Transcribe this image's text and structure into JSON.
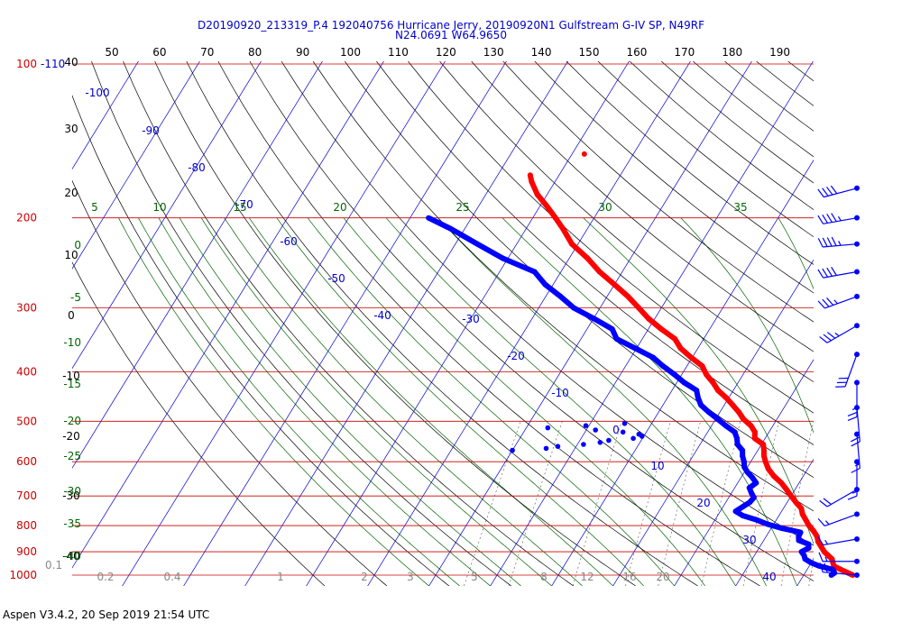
{
  "header": {
    "title_line1": "D20190920_213319_P.4 192040756 Hurricane Jerry, 20190920N1 Gulfstream G-IV SP, N49RF",
    "title_line2": "N24.0691 W64.9650"
  },
  "footer": {
    "text": "Aspen V3.4.2, 20 Sep 2019  21:54 UTC"
  },
  "colors": {
    "isobar": "#cc0000",
    "isotherm": "#0000cc",
    "dry_adiabat": "#000000",
    "moist_adiabat": "#006600",
    "mixing_ratio": "#555555",
    "temperature": "#ff0000",
    "dewpoint": "#0000ff",
    "wind": "#0000ff"
  },
  "chart_data": {
    "type": "line",
    "chart_kind": "skew-T log-P",
    "xlabel": "",
    "ylabel": "",
    "pressure_axis": {
      "levels": [
        1000,
        900,
        800,
        700,
        600,
        500,
        400,
        300,
        200,
        100
      ],
      "labels": [
        "1000",
        "900",
        "800",
        "700",
        "600",
        "500",
        "400",
        "300",
        "200",
        "100"
      ],
      "scale": "log",
      "top_secondary_label": "-110",
      "bottom_secondary_label": "0.1"
    },
    "top_scale": {
      "values": [
        50,
        60,
        70,
        80,
        90,
        100,
        110,
        120,
        130,
        140,
        150,
        160,
        170,
        180,
        190
      ],
      "labels": [
        "50",
        "60",
        "70",
        "80",
        "90",
        "100",
        "110",
        "120",
        "130",
        "140",
        "150",
        "160",
        "170",
        "180",
        "190"
      ]
    },
    "isotherm_labels": [
      "-100",
      "-90",
      "-80",
      "-70",
      "-60",
      "-50",
      "-40",
      "-30",
      "-20",
      "-10",
      "0",
      "10",
      "20",
      "30",
      "40"
    ],
    "dry_adiabat_labels": [
      "40",
      "30",
      "20",
      "10",
      "0",
      "-10",
      "-20",
      "-30",
      "-40"
    ],
    "moist_adiabat_labels": [
      "5",
      "10",
      "15",
      "20",
      "25",
      "30",
      "35"
    ],
    "moist_adiabat_left_labels": [
      "0",
      "-5",
      "-10",
      "-15",
      "-20",
      "-25",
      "-30",
      "-35",
      "-40"
    ],
    "mixing_ratio_labels": [
      "0.2",
      "0.4",
      "1",
      "2",
      "3",
      "5",
      "8",
      "12",
      "16",
      "20"
    ],
    "series": [
      {
        "name": "Temperature",
        "pressure": [
          1000,
          990,
          975,
          960,
          945,
          930,
          915,
          900,
          880,
          860,
          840,
          820,
          800,
          780,
          760,
          740,
          720,
          700,
          680,
          660,
          640,
          620,
          600,
          585,
          570,
          555,
          540,
          525,
          510,
          495,
          480,
          465,
          450,
          435,
          420,
          405,
          390,
          375,
          360,
          345,
          330,
          315,
          300,
          285,
          270,
          255,
          240,
          225,
          210,
          200,
          190,
          180,
          170,
          165
        ],
        "temperature": [
          28.0,
          27.0,
          25.5,
          24.0,
          23.5,
          23.0,
          22.0,
          21.0,
          20.0,
          19.0,
          18.3,
          17.2,
          15.9,
          14.8,
          13.7,
          12.9,
          11.4,
          10.0,
          8.6,
          7.1,
          5.2,
          3.6,
          2.4,
          1.6,
          1.0,
          0.3,
          -1.7,
          -2.3,
          -3.6,
          -5.5,
          -6.9,
          -8.6,
          -10.4,
          -12.5,
          -14.1,
          -16.0,
          -17.5,
          -20.2,
          -22.8,
          -24.7,
          -27.9,
          -31.0,
          -33.7,
          -36.6,
          -40.0,
          -43.7,
          -47.0,
          -51.0,
          -54.0,
          -56.3,
          -58.8,
          -61.6,
          -63.8,
          -64.7
        ]
      },
      {
        "name": "Dewpoint",
        "pressure": [
          1000,
          990,
          975,
          960,
          945,
          930,
          915,
          900,
          885,
          870,
          855,
          840,
          825,
          810,
          795,
          780,
          765,
          750,
          735,
          720,
          705,
          690,
          675,
          660,
          645,
          630,
          615,
          600,
          585,
          570,
          555,
          540,
          525,
          510,
          495,
          480,
          465,
          450,
          435,
          420,
          405,
          390,
          375,
          360,
          345,
          330,
          315,
          300,
          285,
          270,
          255,
          240,
          225,
          210,
          200
        ],
        "dewpoint": [
          24.5,
          24.8,
          24.2,
          21.6,
          19.9,
          18.6,
          18.1,
          17.3,
          18.1,
          17.7,
          15.7,
          15.3,
          15.2,
          11.8,
          9.0,
          6.8,
          4.1,
          2.5,
          3.2,
          3.9,
          4.1,
          3.2,
          2.4,
          3.0,
          1.9,
          0.6,
          -0.5,
          -1.1,
          -1.9,
          -2.5,
          -3.9,
          -4.6,
          -5.6,
          -7.7,
          -9.7,
          -11.8,
          -13.8,
          -15.0,
          -16.0,
          -18.8,
          -21.2,
          -23.9,
          -26.4,
          -30.2,
          -34.2,
          -35.9,
          -39.9,
          -44.3,
          -47.6,
          -51.3,
          -54.3,
          -60.8,
          -66.4,
          -72.3,
          -77.0
        ]
      },
      {
        "name": "Dry layer dewpoints",
        "pressure": [
          570,
          565,
          560,
          555,
          550,
          545,
          540,
          535,
          530,
          525,
          520,
          515,
          510,
          505
        ],
        "dewpoint": [
          -40.0,
          -34.7,
          -33.0,
          -29.0,
          -26.5,
          -25.3,
          -21.5,
          -20.3,
          -21.0,
          -23.8,
          -28.5,
          -36.5,
          -30.5,
          -24.4
        ]
      }
    ],
    "wind_barbs": {
      "pressure": [
        175,
        200,
        225,
        255,
        285,
        325,
        370,
        420,
        470,
        530,
        600,
        680,
        760,
        850,
        940,
        1000
      ],
      "speed_kt": [
        40,
        45,
        45,
        40,
        35,
        35,
        30,
        25,
        20,
        15,
        15,
        20,
        15,
        15,
        15,
        20
      ],
      "direction_deg": [
        255,
        260,
        265,
        260,
        250,
        240,
        200,
        180,
        175,
        175,
        180,
        240,
        250,
        260,
        270,
        275
      ]
    }
  }
}
